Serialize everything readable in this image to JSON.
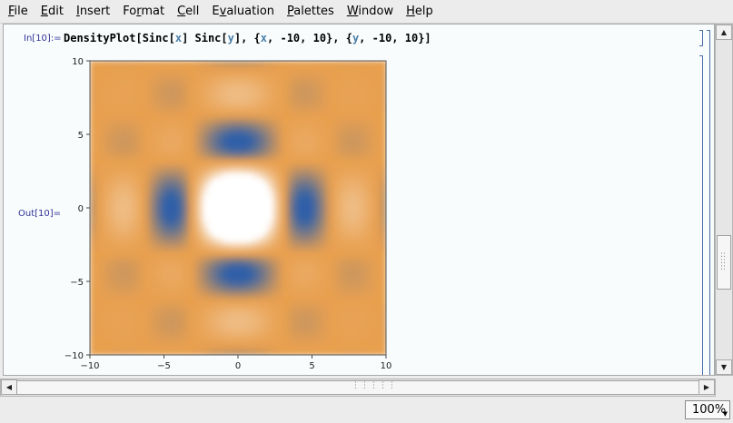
{
  "menu": [
    {
      "pre": "",
      "u": "F",
      "post": "ile"
    },
    {
      "pre": "",
      "u": "E",
      "post": "dit"
    },
    {
      "pre": "",
      "u": "I",
      "post": "nsert"
    },
    {
      "pre": "Fo",
      "u": "r",
      "post": "mat"
    },
    {
      "pre": "",
      "u": "C",
      "post": "ell"
    },
    {
      "pre": "E",
      "u": "v",
      "post": "aluation"
    },
    {
      "pre": "",
      "u": "P",
      "post": "alettes"
    },
    {
      "pre": "",
      "u": "W",
      "post": "indow"
    },
    {
      "pre": "",
      "u": "H",
      "post": "elp"
    }
  ],
  "cell": {
    "in_label": "In[10]:=",
    "out_label": "Out[10]=",
    "code": [
      {
        "t": "DensityPlot[Sinc[",
        "sym": false
      },
      {
        "t": "x",
        "sym": true
      },
      {
        "t": "] Sinc[",
        "sym": false
      },
      {
        "t": "y",
        "sym": true
      },
      {
        "t": "], {",
        "sym": false
      },
      {
        "t": "x",
        "sym": true
      },
      {
        "t": ", -10, 10}, {",
        "sym": false
      },
      {
        "t": "y",
        "sym": true
      },
      {
        "t": ", -10, 10}]",
        "sym": false
      }
    ]
  },
  "chart_data": {
    "type": "heatmap",
    "function": "Sinc[x] Sinc[y]",
    "xlim": [
      -10,
      10
    ],
    "ylim": [
      -10,
      10
    ],
    "x_ticks": [
      -10,
      -5,
      0,
      5,
      10
    ],
    "y_ticks": [
      -10,
      -5,
      0,
      5,
      10
    ],
    "x_tick_labels": [
      "−10",
      "−5",
      "0",
      "5",
      "10"
    ],
    "y_tick_labels": [
      "−10",
      "−5",
      "0",
      "5",
      "10"
    ],
    "colors": {
      "high": "#ffffff",
      "mid": "#f0b060",
      "low": "#3060a8",
      "base": "#e8a050"
    }
  },
  "status": {
    "zoom": "100%"
  },
  "icons": {
    "scroll_up": "▲",
    "scroll_down": "▼",
    "scroll_left": "◀",
    "scroll_right": "▶",
    "zoom_caret": "▼"
  }
}
